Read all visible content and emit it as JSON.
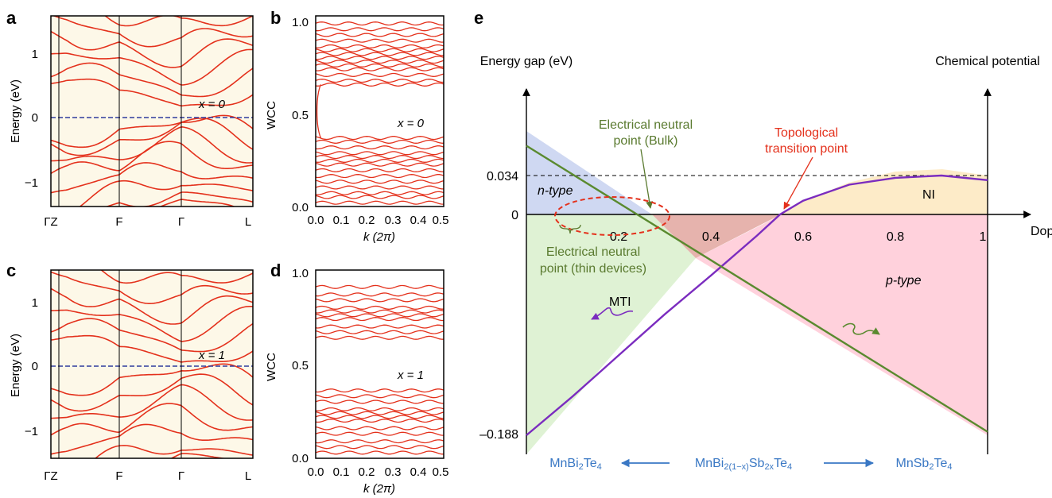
{
  "panel_labels": {
    "a": "a",
    "b": "b",
    "c": "c",
    "d": "d",
    "e": "e"
  },
  "chart_data": [
    {
      "panel": "a",
      "type": "line",
      "ylabel": "Energy (eV)",
      "ylim": [
        -1.5,
        1.5
      ],
      "yticks": [
        "1",
        "0",
        "−1"
      ],
      "xticks": [
        "ΓZ",
        "F",
        "Γ",
        "L"
      ],
      "annotation": "x = 0",
      "fermi_level": 0,
      "conduction_minima": [
        0.05,
        0.28,
        0.55,
        0.8,
        1.05,
        1.3
      ],
      "valence_maxima": [
        -0.07,
        -0.2,
        -0.42,
        -0.6,
        -0.85,
        -1.05,
        -1.25,
        -1.4
      ]
    },
    {
      "panel": "b",
      "type": "line",
      "ylabel": "WCC",
      "xlabel": "k (2π)",
      "xlim": [
        0.0,
        0.5
      ],
      "ylim": [
        0.0,
        1.0
      ],
      "xticks": [
        "0.0",
        "0.1",
        "0.2",
        "0.3",
        "0.4",
        "0.5"
      ],
      "yticks": [
        "1.0",
        "0.5",
        "0.0"
      ],
      "annotation": "x = 0",
      "wcc_levels": [
        0.02,
        0.05,
        0.07,
        0.1,
        0.13,
        0.16,
        0.19,
        0.22,
        0.24,
        0.26,
        0.28,
        0.31,
        0.34,
        0.36,
        0.64,
        0.66,
        0.69,
        0.72,
        0.74,
        0.76,
        0.78,
        0.8,
        0.82,
        0.84,
        0.87,
        0.9,
        0.93,
        0.96
      ]
    },
    {
      "panel": "c",
      "type": "line",
      "ylabel": "Energy (eV)",
      "ylim": [
        -1.5,
        1.5
      ],
      "yticks": [
        "1",
        "0",
        "−1"
      ],
      "xticks": [
        "ΓZ",
        "F",
        "Γ",
        "L"
      ],
      "annotation": "x = 1",
      "fermi_level": 0,
      "conduction_minima": [
        0.0,
        0.25,
        0.5,
        0.75,
        1.0,
        1.25
      ],
      "valence_maxima": [
        0.0,
        -0.25,
        -0.5,
        -0.75,
        -1.0,
        -1.25,
        -1.4
      ]
    },
    {
      "panel": "d",
      "type": "line",
      "ylabel": "WCC",
      "xlabel": "k (2π)",
      "xlim": [
        0.0,
        0.5
      ],
      "ylim": [
        0.0,
        1.0
      ],
      "xticks": [
        "0.0",
        "0.1",
        "0.2",
        "0.3",
        "0.4",
        "0.5"
      ],
      "yticks": [
        "1.0",
        "0.5",
        "0.0"
      ],
      "annotation": "x = 1",
      "wcc_levels": [
        0.03,
        0.06,
        0.09,
        0.13,
        0.16,
        0.2,
        0.22,
        0.24,
        0.26,
        0.3,
        0.33,
        0.36,
        0.64,
        0.67,
        0.7,
        0.74,
        0.76,
        0.78,
        0.8,
        0.84,
        0.87,
        0.91
      ]
    },
    {
      "panel": "e",
      "type": "line",
      "xlabel": "Doping ratio x",
      "ylabel_left": "Energy gap (eV)",
      "ylabel_right": "Chemical potential",
      "xlim": [
        0,
        1
      ],
      "xticks": [
        "0.2",
        "0.4",
        "0.6",
        "0.8",
        "1"
      ],
      "yticks": [
        "0.034",
        "0",
        "–0.188"
      ],
      "series": [
        {
          "name": "Energy gap",
          "color": "#7b2cbf",
          "x": [
            0,
            0.1,
            0.2,
            0.3,
            0.4,
            0.5,
            0.55,
            0.6,
            0.7,
            0.8,
            0.9,
            1.0
          ],
          "y": [
            -0.188,
            -0.155,
            -0.12,
            -0.085,
            -0.052,
            -0.018,
            0.0,
            0.012,
            0.026,
            0.032,
            0.034,
            0.03
          ]
        },
        {
          "name": "Chemical potential",
          "color": "#5a8a2f",
          "x": [
            0,
            1
          ],
          "y": [
            0.06,
            -0.185
          ]
        }
      ],
      "reference_line": 0.034,
      "region_labels": {
        "n_type": "n-type",
        "p_type": "p-type",
        "mti": "MTI",
        "ni": "NI"
      },
      "annotations": {
        "electrical_neutral_bulk": [
          "Electrical neutral",
          "point (Bulk)"
        ],
        "topological_transition": [
          "Topological",
          "transition point"
        ],
        "electrical_neutral_thin": [
          "Electrical neutral",
          "point (thin devices)"
        ]
      },
      "compounds": {
        "left": "MnBi2Te4",
        "middle": "MnBi2(1−x)Sb2xTe4",
        "right": "MnSb2Te4"
      },
      "colors": {
        "n_type": "#cfd8f2",
        "p_type": "#ffd1dc",
        "mti": "#dff2d4",
        "ni": "#fdebc8",
        "overlap": "#e6b3ad",
        "compound_text": "#3a78c4",
        "neutral_text": "#5a7a2f",
        "transition_text": "#e4311c"
      }
    }
  ]
}
